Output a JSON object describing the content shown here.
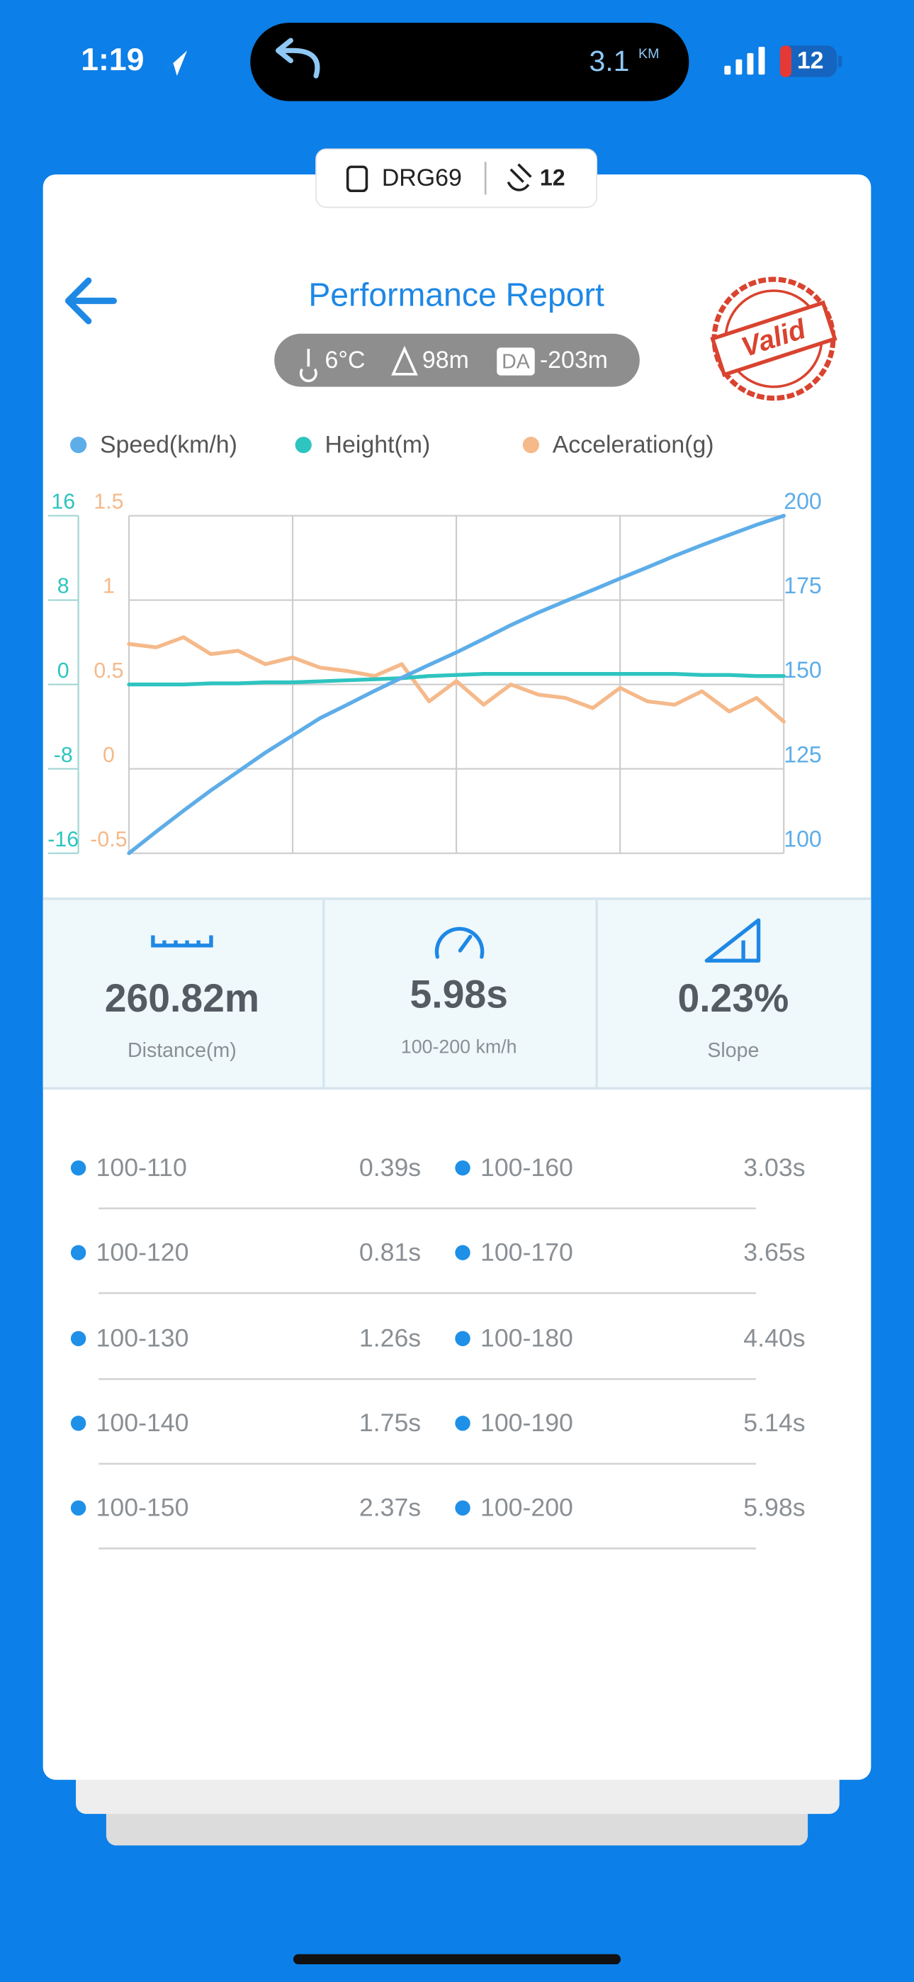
{
  "status_bar": {
    "time": "1:19",
    "distance": "3.1",
    "distance_unit": "KM",
    "battery": "12"
  },
  "device": {
    "name": "DRG69",
    "satellites": "12"
  },
  "header": {
    "title": "Performance Report",
    "stamp": "Valid"
  },
  "conditions": {
    "temperature": "6°C",
    "altitude": "98m",
    "da_badge": "DA",
    "density_altitude": "-203m"
  },
  "chart_data": {
    "type": "line",
    "x": [
      0,
      0.25,
      0.5,
      0.75,
      1,
      1.25,
      1.5,
      1.75,
      2,
      2.25,
      2.5,
      2.75,
      3,
      3.25,
      3.5,
      3.75,
      4,
      4.25,
      4.5,
      4.75,
      5,
      5.25,
      5.5,
      5.75,
      6
    ],
    "xlim": [
      0,
      6
    ],
    "xticks": [
      0,
      1.5,
      3,
      4.5,
      6
    ],
    "grid": true,
    "ylim": [
      -16,
      16
    ],
    "yticks": [
      16,
      8,
      0,
      -8,
      -16
    ],
    "y2lim": [
      100,
      200
    ],
    "y2ticks": [
      200,
      175,
      150,
      125,
      100
    ],
    "y3lim": [
      -0.5,
      1.5
    ],
    "y3ticks": [
      1.5,
      1,
      0.5,
      0,
      -0.5
    ],
    "series": [
      {
        "name": "Speed(km/h)",
        "color": "#5dade8",
        "axis": "y2",
        "values": [
          100,
          106.4,
          112.6,
          118.6,
          124.2,
          129.8,
          134.9,
          140,
          144,
          148.1,
          152,
          155.8,
          159.5,
          163.5,
          167.6,
          171.3,
          174.7,
          178,
          181.4,
          184.7,
          188.1,
          191.3,
          194.3,
          197.3,
          200
        ]
      },
      {
        "name": "Height(m)",
        "color": "#2ec4c0",
        "axis": "y",
        "values": [
          0,
          0,
          0,
          0.1,
          0.1,
          0.2,
          0.2,
          0.3,
          0.4,
          0.5,
          0.6,
          0.8,
          0.9,
          1,
          1,
          1,
          1,
          1,
          1,
          1,
          1,
          0.9,
          0.9,
          0.8,
          0.8
        ]
      },
      {
        "name": "Acceleration(g)",
        "color": "#f5b98a",
        "axis": "y3",
        "values": [
          0.74,
          0.72,
          0.78,
          0.68,
          0.7,
          0.62,
          0.66,
          0.6,
          0.58,
          0.55,
          0.62,
          0.4,
          0.52,
          0.38,
          0.5,
          0.44,
          0.42,
          0.36,
          0.48,
          0.4,
          0.38,
          0.46,
          0.34,
          0.42,
          0.28
        ]
      }
    ]
  },
  "stats": [
    {
      "value": "260.82m",
      "label": "Distance(m)"
    },
    {
      "value": "5.98s",
      "label": "100-200 km/h"
    },
    {
      "value": "0.23%",
      "label": "Slope"
    }
  ],
  "splits": [
    {
      "range": "100-110",
      "time": "0.39s"
    },
    {
      "range": "100-160",
      "time": "3.03s"
    },
    {
      "range": "100-120",
      "time": "0.81s"
    },
    {
      "range": "100-170",
      "time": "3.65s"
    },
    {
      "range": "100-130",
      "time": "1.26s"
    },
    {
      "range": "100-180",
      "time": "4.40s"
    },
    {
      "range": "100-140",
      "time": "1.75s"
    },
    {
      "range": "100-190",
      "time": "5.14s"
    },
    {
      "range": "100-150",
      "time": "2.37s"
    },
    {
      "range": "100-200",
      "time": "5.98s"
    }
  ]
}
